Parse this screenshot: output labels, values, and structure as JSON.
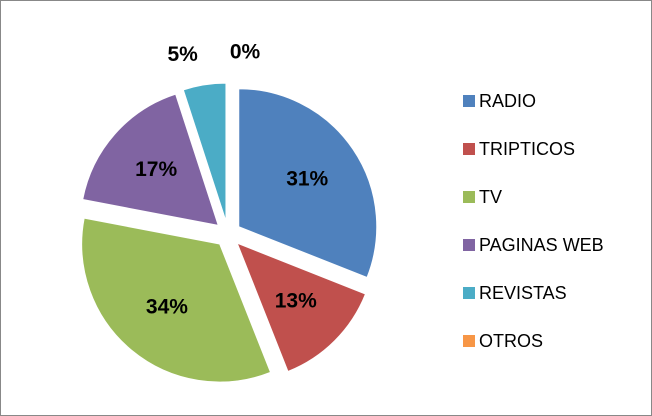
{
  "chart_data": {
    "type": "pie",
    "categories": [
      "RADIO",
      "TRIPTICOS",
      "TV",
      "PAGINAS WEB",
      "REVISTAS",
      "OTROS"
    ],
    "values": [
      31,
      13,
      34,
      17,
      5,
      0
    ],
    "value_labels": [
      "31%",
      "13%",
      "34%",
      "17%",
      "5%",
      "0%"
    ],
    "colors": [
      "#4f81bd",
      "#c0504d",
      "#9bbb59",
      "#8064a2",
      "#4bacc6",
      "#f79646"
    ],
    "legend": "right"
  }
}
